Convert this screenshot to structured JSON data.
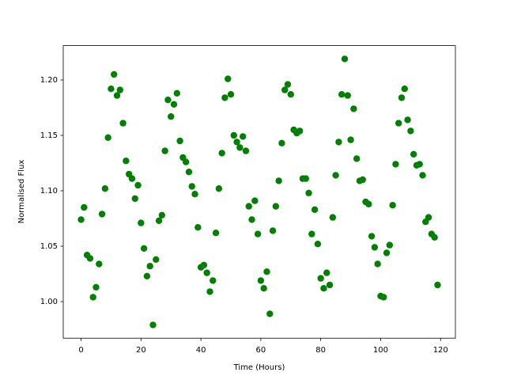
{
  "chart_data": {
    "type": "scatter",
    "x_label": "Time (Hours)",
    "y_label": "Normalised Flux",
    "x": [
      0,
      1,
      2,
      3,
      4,
      5,
      6,
      7,
      8,
      9,
      10,
      11,
      12,
      13,
      14,
      15,
      16,
      17,
      18,
      19,
      20,
      21,
      22,
      23,
      24,
      25,
      26,
      27,
      28,
      29,
      30,
      31,
      32,
      33,
      34,
      35,
      36,
      37,
      38,
      39,
      40,
      41,
      42,
      43,
      44,
      45,
      46,
      47,
      48,
      49,
      50,
      51,
      52,
      53,
      54,
      55,
      56,
      57,
      58,
      59,
      60,
      61,
      62,
      63,
      64,
      65,
      66,
      67,
      68,
      69,
      70,
      71,
      72,
      73,
      74,
      75,
      76,
      77,
      78,
      79,
      80,
      81,
      82,
      83,
      84,
      85,
      86,
      87,
      88,
      89,
      90,
      91,
      92,
      93,
      94,
      95,
      96,
      97,
      98,
      99,
      100,
      101,
      102,
      103,
      104,
      105,
      106,
      107,
      108,
      109,
      110,
      111,
      112,
      113,
      114,
      115,
      116,
      117,
      118,
      119
    ],
    "values": [
      1.074,
      1.085,
      1.042,
      1.039,
      1.004,
      1.013,
      1.034,
      1.079,
      1.102,
      1.148,
      1.192,
      1.205,
      1.186,
      1.191,
      1.161,
      1.127,
      1.115,
      1.111,
      1.093,
      1.105,
      1.071,
      1.048,
      1.023,
      1.032,
      0.979,
      1.038,
      1.073,
      1.078,
      1.136,
      1.182,
      1.167,
      1.178,
      1.188,
      1.145,
      1.13,
      1.126,
      1.117,
      1.104,
      1.097,
      1.067,
      1.031,
      1.033,
      1.026,
      1.009,
      1.019,
      1.062,
      1.102,
      1.134,
      1.184,
      1.201,
      1.187,
      1.15,
      1.144,
      1.139,
      1.149,
      1.136,
      1.086,
      1.074,
      1.091,
      1.061,
      1.019,
      1.012,
      1.027,
      0.989,
      1.064,
      1.086,
      1.109,
      1.143,
      1.191,
      1.196,
      1.187,
      1.155,
      1.152,
      1.154,
      1.111,
      1.111,
      1.098,
      1.061,
      1.083,
      1.052,
      1.021,
      1.012,
      1.026,
      1.015,
      1.076,
      1.114,
      1.144,
      1.187,
      1.219,
      1.186,
      1.146,
      1.174,
      1.129,
      1.109,
      1.11,
      1.09,
      1.088,
      1.059,
      1.049,
      1.034,
      1.005,
      1.004,
      1.044,
      1.051,
      1.087,
      1.124,
      1.161,
      1.184,
      1.192,
      1.164,
      1.154,
      1.133,
      1.123,
      1.124,
      1.114,
      1.072,
      1.076,
      1.061,
      1.058,
      1.015
    ],
    "color": "#008000",
    "xlim": [
      -5.95,
      124.95
    ],
    "xticks": [
      0,
      20,
      40,
      60,
      80,
      100,
      120
    ],
    "ylim": [
      0.967,
      1.231
    ],
    "yticks": [
      {
        "value": 1.0,
        "label": "1.00"
      },
      {
        "value": 1.05,
        "label": "1.05"
      },
      {
        "value": 1.1,
        "label": "1.10"
      },
      {
        "value": 1.15,
        "label": "1.15"
      },
      {
        "value": 1.2,
        "label": "1.20"
      }
    ],
    "grid": false
  }
}
